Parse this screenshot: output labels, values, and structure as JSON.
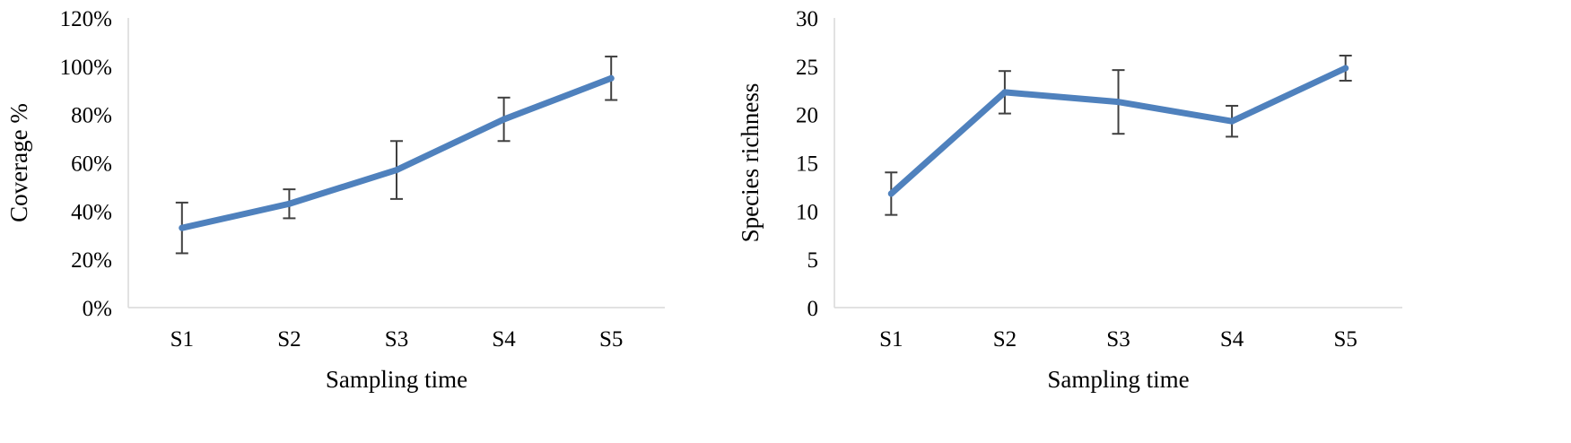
{
  "chart_data": [
    {
      "type": "line",
      "xlabel": "Sampling time",
      "ylabel": "Coverage %",
      "categories": [
        "S1",
        "S2",
        "S3",
        "S4",
        "S5"
      ],
      "ylim": [
        0,
        120
      ],
      "yticks": [
        0,
        20,
        40,
        60,
        80,
        100,
        120
      ],
      "ytick_labels": [
        "0%",
        "20%",
        "40%",
        "60%",
        "80%",
        "100%",
        "120%"
      ],
      "series": [
        {
          "values": [
            33,
            43,
            57,
            78,
            95
          ],
          "error": [
            10.5,
            6,
            12,
            9,
            9
          ],
          "color": "#4f81bd"
        }
      ],
      "grid": false,
      "legend": "none"
    },
    {
      "type": "line",
      "xlabel": "Sampling time",
      "ylabel": "Species richness",
      "categories": [
        "S1",
        "S2",
        "S3",
        "S4",
        "S5"
      ],
      "ylim": [
        0,
        30
      ],
      "yticks": [
        0,
        5,
        10,
        15,
        20,
        25,
        30
      ],
      "ytick_labels": [
        "0",
        "5",
        "10",
        "15",
        "20",
        "25",
        "30"
      ],
      "series": [
        {
          "values": [
            11.8,
            22.3,
            21.3,
            19.3,
            24.8
          ],
          "error": [
            2.2,
            2.2,
            3.3,
            1.6,
            1.3
          ],
          "color": "#4f81bd"
        }
      ],
      "grid": false,
      "legend": "none"
    }
  ]
}
